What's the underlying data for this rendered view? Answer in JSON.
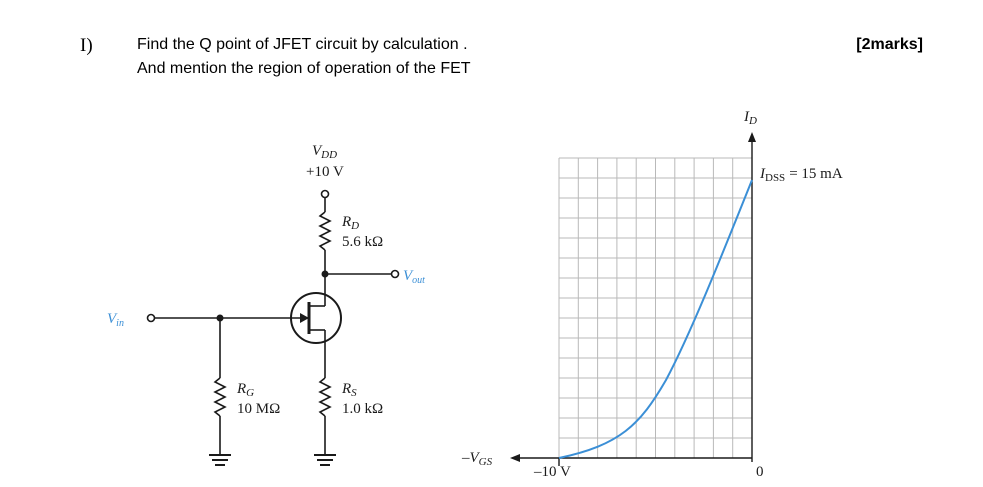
{
  "question": {
    "number": "I)",
    "line1": "Find the Q point of JFET circuit by calculation .",
    "line2": "And mention the region of operation of the FET",
    "marks": "[2marks]"
  },
  "circuit": {
    "vdd_label": "V",
    "vdd_sub": "DD",
    "vdd_value": "+10 V",
    "rd_label": "R",
    "rd_sub": "D",
    "rd_value": "5.6 kΩ",
    "vout_label": "V",
    "vout_sub": "out",
    "vin_label": "V",
    "vin_sub": "in",
    "rg_label": "R",
    "rg_sub": "G",
    "rg_value": "10 MΩ",
    "rs_label": "R",
    "rs_sub": "S",
    "rs_value": "1.0 kΩ"
  },
  "curve": {
    "id_label": "I",
    "id_sub": "D",
    "idss_label": "I",
    "idss_sub": "DSS",
    "idss_value": "= 15 mA",
    "vgs_label": "–V",
    "vgs_sub": "GS",
    "vgs_min_label": "–10 V",
    "origin_label": "0",
    "curve_color": "#3b8fd6"
  }
}
